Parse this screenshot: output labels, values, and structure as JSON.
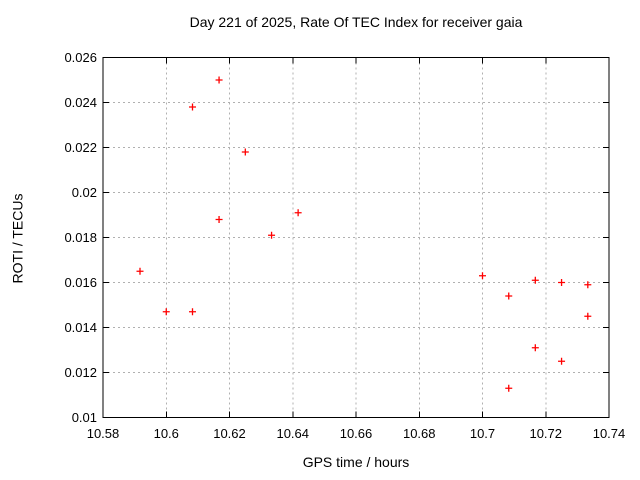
{
  "window": {
    "background_color": "#ffffff",
    "text_color": "#000000"
  },
  "chart_data": {
    "type": "scatter",
    "title": "Day 221 of 2025, Rate Of TEC Index for receiver gaia",
    "xlabel": "GPS time / hours",
    "ylabel": "ROTI / TECUs",
    "xlim": [
      10.58,
      10.74
    ],
    "ylim": [
      0.01,
      0.026
    ],
    "x_ticks": [
      10.58,
      10.6,
      10.62,
      10.64,
      10.66,
      10.68,
      10.7,
      10.72,
      10.74
    ],
    "x_tick_labels": [
      "10.58",
      "10.6",
      "10.62",
      "10.64",
      "10.66",
      "10.68",
      "10.7",
      "10.72",
      "10.74"
    ],
    "y_ticks": [
      0.01,
      0.012,
      0.014,
      0.016,
      0.018,
      0.02,
      0.022,
      0.024,
      0.026
    ],
    "y_tick_labels": [
      "0.01",
      "0.012",
      "0.014",
      "0.016",
      "0.018",
      "0.02",
      "0.022",
      "0.024",
      "0.026"
    ],
    "grid": true,
    "grid_style": "dashed",
    "legend_position": "none",
    "marker_shape": "plus",
    "marker_color": "#ff0000",
    "marker_size": 7,
    "grid_color": "#b0b0b0",
    "axis_color": "#000000",
    "series": [
      {
        "name": "ROTI",
        "points": [
          [
            10.5917,
            0.0165
          ],
          [
            10.6,
            0.0147
          ],
          [
            10.6083,
            0.0238
          ],
          [
            10.6083,
            0.0147
          ],
          [
            10.6167,
            0.025
          ],
          [
            10.6167,
            0.0188
          ],
          [
            10.625,
            0.0218
          ],
          [
            10.6333,
            0.0181
          ],
          [
            10.6417,
            0.0191
          ],
          [
            10.7,
            0.0163
          ],
          [
            10.7083,
            0.0154
          ],
          [
            10.7083,
            0.0113
          ],
          [
            10.7167,
            0.0161
          ],
          [
            10.7167,
            0.0131
          ],
          [
            10.725,
            0.016
          ],
          [
            10.725,
            0.0125
          ],
          [
            10.7333,
            0.0159
          ],
          [
            10.7333,
            0.0145
          ]
        ]
      }
    ]
  }
}
